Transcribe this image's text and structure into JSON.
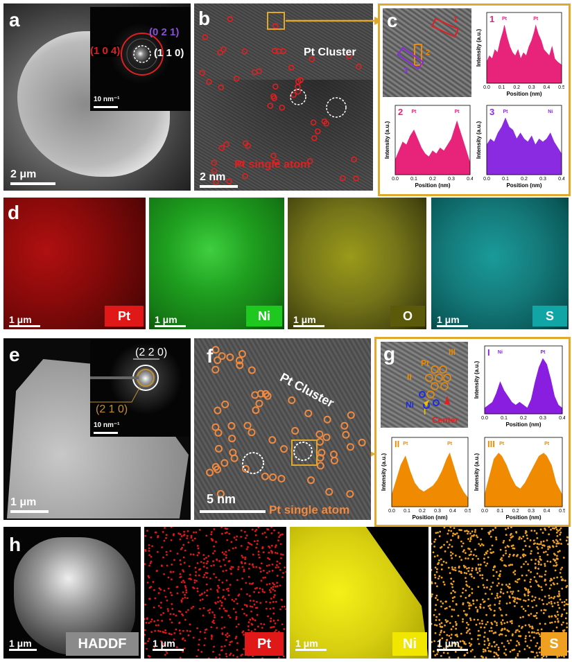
{
  "panels": {
    "a": {
      "letter": "a",
      "scale": "2 μm",
      "inset_scale": "10 nm⁻¹",
      "planes": [
        "(0 2 1)",
        "(1 0 4)",
        "(1 1 0)"
      ]
    },
    "b": {
      "letter": "b",
      "scale": "2 nm",
      "cluster": "Pt Cluster",
      "single": "Pt single atom"
    },
    "c": {
      "letter": "c",
      "markers": [
        "1",
        "2",
        "3"
      ]
    },
    "d": {
      "letter": "d",
      "maps": [
        {
          "scale": "1 μm",
          "element": "Pt"
        },
        {
          "scale": "1 μm",
          "element": "Ni"
        },
        {
          "scale": "1 μm",
          "element": "O"
        },
        {
          "scale": "1 μm",
          "element": "S"
        }
      ]
    },
    "e": {
      "letter": "e",
      "scale": "1 μm",
      "inset_scale": "10 nm⁻¹",
      "planes": [
        "(2 2 0)",
        "(2 1 0)"
      ]
    },
    "f": {
      "letter": "f",
      "scale": "5 nm",
      "cluster": "Pt Cluster",
      "single": "Pt single atom"
    },
    "g": {
      "letter": "g",
      "labels": {
        "pt": "Pt",
        "ii": "II",
        "iii": "III",
        "ni": "Ni",
        "i": "I",
        "center": "Center"
      }
    },
    "h": {
      "letter": "h",
      "maps": [
        {
          "scale": "1 μm",
          "element": "HADDF"
        },
        {
          "scale": "1 μm",
          "element": "Pt"
        },
        {
          "scale": "1 μm",
          "element": "Ni"
        },
        {
          "scale": "1 μm",
          "element": "S"
        }
      ]
    }
  },
  "chart_data": [
    {
      "type": "area",
      "id": "c1",
      "marker": "1",
      "xlabel": "Position (nm)",
      "ylabel": "Intensity (a.u.)",
      "xlim": [
        0,
        0.55
      ],
      "xticks": [
        "0.0",
        "0.1",
        "0.2",
        "0.3",
        "0.4",
        "0.5"
      ],
      "peaks": [
        {
          "x": 0.13,
          "label": "Pt"
        },
        {
          "x": 0.36,
          "label": "Pt"
        }
      ],
      "color": "#e8237a",
      "x": [
        0,
        0.02,
        0.04,
        0.06,
        0.08,
        0.1,
        0.12,
        0.13,
        0.15,
        0.17,
        0.19,
        0.21,
        0.23,
        0.25,
        0.27,
        0.29,
        0.31,
        0.33,
        0.35,
        0.36,
        0.38,
        0.4,
        0.42,
        0.44,
        0.46,
        0.48,
        0.5,
        0.52,
        0.55
      ],
      "y": [
        0.35,
        0.45,
        0.4,
        0.55,
        0.5,
        0.7,
        0.85,
        0.95,
        0.75,
        0.6,
        0.5,
        0.45,
        0.55,
        0.4,
        0.5,
        0.45,
        0.6,
        0.7,
        0.85,
        0.95,
        0.8,
        0.7,
        0.55,
        0.5,
        0.45,
        0.6,
        0.4,
        0.35,
        0.3
      ]
    },
    {
      "type": "area",
      "id": "c2",
      "marker": "2",
      "xlabel": "Position (nm)",
      "ylabel": "Intensity (a.u.)",
      "xlim": [
        0,
        0.4
      ],
      "xticks": [
        "0.0",
        "0.1",
        "0.2",
        "0.3",
        "0.4"
      ],
      "peaks": [
        {
          "x": 0.1,
          "label": "Pt"
        },
        {
          "x": 0.33,
          "label": "Pt"
        }
      ],
      "color": "#e8237a",
      "x": [
        0,
        0.02,
        0.04,
        0.06,
        0.08,
        0.1,
        0.12,
        0.14,
        0.16,
        0.18,
        0.2,
        0.22,
        0.24,
        0.26,
        0.28,
        0.3,
        0.32,
        0.33,
        0.35,
        0.37,
        0.39,
        0.4
      ],
      "y": [
        0.25,
        0.4,
        0.55,
        0.5,
        0.65,
        0.75,
        0.6,
        0.45,
        0.35,
        0.3,
        0.4,
        0.35,
        0.45,
        0.4,
        0.5,
        0.6,
        0.8,
        0.9,
        0.7,
        0.5,
        0.3,
        0.2
      ]
    },
    {
      "type": "area",
      "id": "c3",
      "marker": "3",
      "xlabel": "Position (nm)",
      "ylabel": "Intensity (a.u.)",
      "xlim": [
        0,
        0.4
      ],
      "xticks": [
        "0.0",
        "0.1",
        "0.2",
        "0.3",
        "0.4"
      ],
      "peaks": [
        {
          "x": 0.1,
          "label": "Pt"
        },
        {
          "x": 0.34,
          "label": "Ni"
        }
      ],
      "color": "#8a2be2",
      "x": [
        0,
        0.02,
        0.04,
        0.06,
        0.08,
        0.1,
        0.12,
        0.14,
        0.16,
        0.18,
        0.2,
        0.22,
        0.24,
        0.26,
        0.28,
        0.3,
        0.32,
        0.34,
        0.36,
        0.38,
        0.4
      ],
      "y": [
        0.5,
        0.6,
        0.55,
        0.7,
        0.8,
        0.95,
        0.8,
        0.75,
        0.6,
        0.7,
        0.6,
        0.55,
        0.65,
        0.5,
        0.6,
        0.55,
        0.6,
        0.7,
        0.55,
        0.45,
        0.35
      ]
    },
    {
      "type": "area",
      "id": "gI",
      "marker": "I",
      "xlabel": "Position (nm)",
      "ylabel": "Intensity (a.u.)",
      "xlim": [
        0,
        0.4
      ],
      "xticks": [
        "0.0",
        "0.1",
        "0.2",
        "0.3",
        "0.4"
      ],
      "peaks": [
        {
          "x": 0.08,
          "label": "Ni"
        },
        {
          "x": 0.3,
          "label": "Pt"
        }
      ],
      "color": "#8a1ee0",
      "x": [
        0,
        0.02,
        0.04,
        0.06,
        0.08,
        0.1,
        0.12,
        0.14,
        0.16,
        0.18,
        0.2,
        0.22,
        0.24,
        0.26,
        0.28,
        0.3,
        0.32,
        0.34,
        0.36,
        0.38,
        0.4
      ],
      "y": [
        0.1,
        0.15,
        0.2,
        0.35,
        0.55,
        0.4,
        0.3,
        0.2,
        0.15,
        0.2,
        0.15,
        0.1,
        0.25,
        0.55,
        0.8,
        0.95,
        0.85,
        0.6,
        0.3,
        0.15,
        0.1
      ]
    },
    {
      "type": "area",
      "id": "gII",
      "marker": "II",
      "xlabel": "Position (nm)",
      "ylabel": "Intensity (a.u.)",
      "xlim": [
        0,
        0.5
      ],
      "xticks": [
        "0.0",
        "0.1",
        "0.2",
        "0.3",
        "0.4",
        "0.5"
      ],
      "peaks": [
        {
          "x": 0.09,
          "label": "Pt"
        },
        {
          "x": 0.38,
          "label": "Pt"
        }
      ],
      "color": "#f08a00",
      "x": [
        0,
        0.03,
        0.06,
        0.09,
        0.12,
        0.15,
        0.18,
        0.21,
        0.24,
        0.27,
        0.3,
        0.33,
        0.36,
        0.38,
        0.41,
        0.44,
        0.47,
        0.5
      ],
      "y": [
        0.2,
        0.45,
        0.7,
        0.85,
        0.6,
        0.4,
        0.3,
        0.25,
        0.3,
        0.35,
        0.45,
        0.6,
        0.8,
        0.9,
        0.65,
        0.4,
        0.25,
        0.15
      ]
    },
    {
      "type": "area",
      "id": "gIII",
      "marker": "III",
      "xlabel": "Position (nm)",
      "ylabel": "Intensity (a.u.)",
      "xlim": [
        0,
        0.5
      ],
      "xticks": [
        "0.0",
        "0.1",
        "0.2",
        "0.3",
        "0.4",
        "0.5"
      ],
      "peaks": [
        {
          "x": 0.11,
          "label": "Pt"
        },
        {
          "x": 0.4,
          "label": "Pt"
        }
      ],
      "color": "#f08a00",
      "x": [
        0,
        0.03,
        0.06,
        0.09,
        0.11,
        0.14,
        0.17,
        0.2,
        0.23,
        0.26,
        0.29,
        0.32,
        0.35,
        0.38,
        0.4,
        0.43,
        0.46,
        0.5
      ],
      "y": [
        0.2,
        0.5,
        0.8,
        0.9,
        0.85,
        0.7,
        0.5,
        0.35,
        0.3,
        0.4,
        0.55,
        0.7,
        0.85,
        0.9,
        0.85,
        0.7,
        0.4,
        0.2
      ]
    }
  ]
}
